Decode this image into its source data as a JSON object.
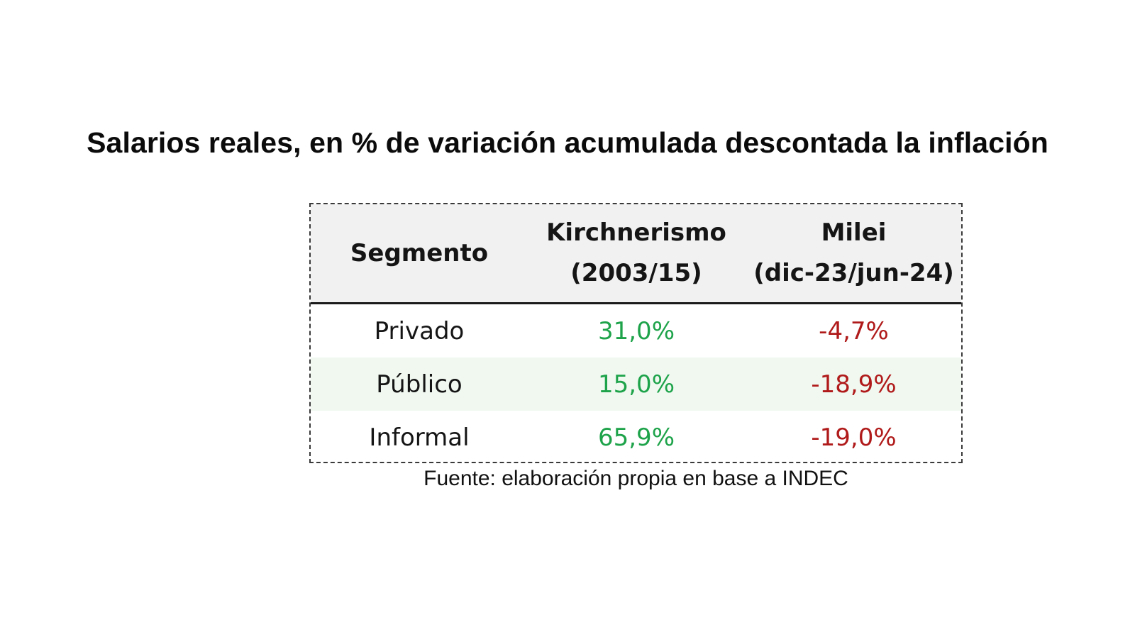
{
  "title": "Salarios reales, en % de variación acumulada descontada la inflación",
  "table": {
    "headers": [
      {
        "line1": "Segmento",
        "line2": ""
      },
      {
        "line1": "Kirchnerismo",
        "line2": "(2003/15)"
      },
      {
        "line1": "Milei",
        "line2": "(dic-23/jun-24)"
      }
    ],
    "rows": [
      {
        "segment": "Privado",
        "kirchnerismo": "31,0%",
        "milei": "-4,7%"
      },
      {
        "segment": "Público",
        "kirchnerismo": "15,0%",
        "milei": "-18,9%"
      },
      {
        "segment": "Informal",
        "kirchnerismo": "65,9%",
        "milei": "-19,0%"
      }
    ]
  },
  "source": "Fuente: elaboración propia en base a INDEC",
  "colors": {
    "positive": "#1ea34a",
    "negative": "#b01a1a",
    "header_bg": "#f1f1f1",
    "stripe_bg": "#f0f8f0"
  }
}
